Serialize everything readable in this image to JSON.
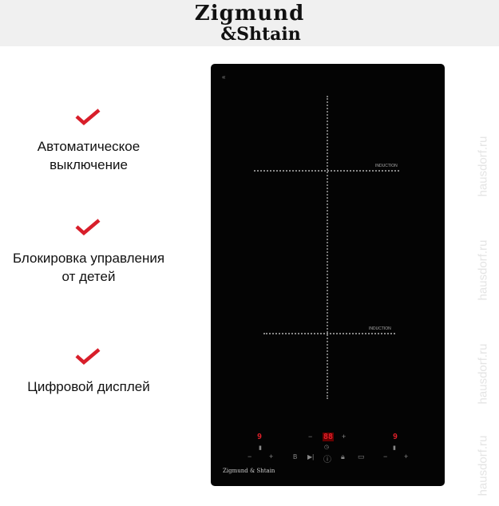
{
  "brand": {
    "line1": "Zigmund",
    "line2": "&Shtain"
  },
  "features": [
    {
      "icon": "checkmark-icon",
      "text": "Автоматическое выключение"
    },
    {
      "icon": "checkmark-icon",
      "text": "Блокировка управления от детей"
    },
    {
      "icon": "checkmark-icon",
      "text": "Цифровой дисплей"
    }
  ],
  "hob": {
    "zone_label": "INDUCTION",
    "left_display": "9",
    "right_display": "9",
    "timer_display": "88",
    "minus": "−",
    "plus": "+",
    "panel_brand": "Zigmund & Shtain"
  },
  "watermark": "hausdorf.ru",
  "colors": {
    "accent": "#d81e2a",
    "hob": "#040404",
    "display": "#e0202a"
  }
}
